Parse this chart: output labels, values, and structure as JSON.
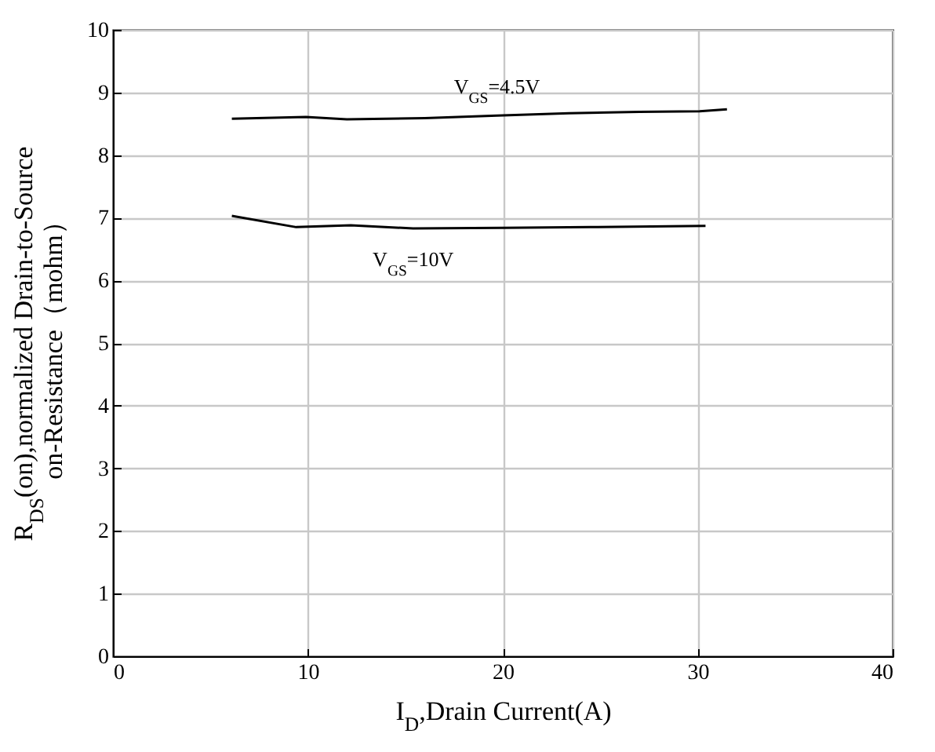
{
  "chart_data": {
    "type": "line",
    "xlabel": "I$_{D}$,Drain Current(A)",
    "ylabel": "R$_{DS}$(on),normalized Drain-to-Source\non-Resistance（mohm）",
    "x": [
      6.1,
      9.9,
      12.0,
      16.0,
      19.7,
      23.4,
      27.0,
      30.1,
      31.5
    ],
    "series": [
      {
        "name": "V$_{GS}$=4.5V",
        "color": "#000000",
        "values": [
          8.58,
          8.61,
          8.57,
          8.59,
          8.63,
          8.67,
          8.69,
          8.7,
          8.73
        ]
      },
      {
        "name": "V$_{GS}$=10V",
        "color": "#000000",
        "x": [
          6.1,
          9.4,
          12.2,
          15.4,
          20.0,
          24.5,
          30.4
        ],
        "values": [
          7.03,
          6.85,
          6.88,
          6.83,
          6.84,
          6.85,
          6.87
        ]
      }
    ],
    "xlim": [
      0,
      40
    ],
    "xticks": [
      0,
      10,
      20,
      30,
      40
    ],
    "ylim": [
      0,
      10
    ],
    "yticks": [
      0,
      1,
      2,
      3,
      4,
      5,
      6,
      7,
      8,
      9,
      10
    ],
    "grid": true,
    "marker": "none",
    "line_style": "solid"
  }
}
